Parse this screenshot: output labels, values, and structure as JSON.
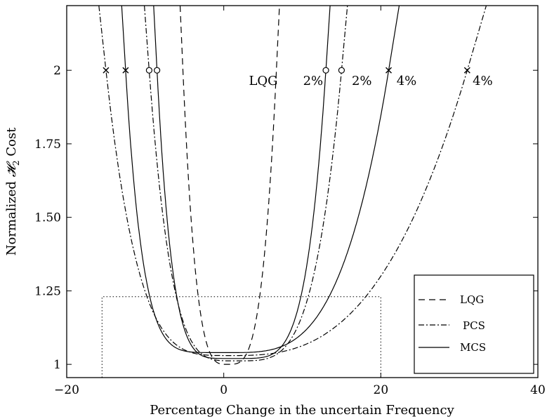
{
  "chart_data": {
    "type": "line",
    "xlabel": "Percentage Change in the uncertain Frequency",
    "ylabel_main": "Normalized ",
    "ylabel_sym": "𝓗",
    "ylabel_sub": "2",
    "ylabel_tail": " Cost",
    "xlim": [
      -20,
      40
    ],
    "ylim": [
      0.955,
      2.22
    ],
    "xticks": [
      {
        "value": -20,
        "label": "−20"
      },
      {
        "value": 0,
        "label": "0"
      },
      {
        "value": 20,
        "label": "20"
      },
      {
        "value": 40,
        "label": "40"
      }
    ],
    "yticks": [
      {
        "value": 1,
        "label": "1"
      },
      {
        "value": 1.25,
        "label": "1.25"
      },
      {
        "value": 1.5,
        "label": "1.50"
      },
      {
        "value": 1.75,
        "label": "1.75"
      },
      {
        "value": 2,
        "label": "2"
      }
    ],
    "grid": false,
    "legend_position": "bottom-right",
    "legend": [
      {
        "label": "LQG",
        "style": "dashed"
      },
      {
        "label": "PCS",
        "style": "dashdot"
      },
      {
        "label": "MCS",
        "style": "solid"
      }
    ],
    "series": [
      {
        "name": "LQG",
        "style": "dashed",
        "center": 0.5,
        "min": 1.0,
        "left": -5.2,
        "right": 6.7,
        "powL": 3.5,
        "powR": 3.5
      },
      {
        "name": "PCS",
        "style": "dashdot",
        "center": 1.5,
        "min": 1.012,
        "left": -9.5,
        "right": 15.0,
        "powL": 4,
        "powR": 4
      },
      {
        "name": "MCS",
        "style": "solid",
        "center": 1.0,
        "min": 1.02,
        "left": -8.5,
        "right": 13.0,
        "powL": 5,
        "powR": 5
      },
      {
        "name": "PCS",
        "style": "dashdot",
        "center": 1.0,
        "min": 1.03,
        "left": -15.0,
        "right": 31.0,
        "powL": 4,
        "powR": 2.8
      },
      {
        "name": "MCS",
        "style": "solid",
        "center": 0.5,
        "min": 1.04,
        "left": -12.5,
        "right": 21.0,
        "powL": 6,
        "powR": 3.5
      }
    ],
    "box": {
      "x0": -15.5,
      "x1": 20.0,
      "y": 1.23
    },
    "markers": [
      {
        "x": -15.0,
        "y": 2,
        "symbol": "x"
      },
      {
        "x": -12.5,
        "y": 2,
        "symbol": "x"
      },
      {
        "x": -9.5,
        "y": 2,
        "symbol": "o"
      },
      {
        "x": -8.5,
        "y": 2,
        "symbol": "o"
      },
      {
        "x": 13.0,
        "y": 2,
        "symbol": "o"
      },
      {
        "x": 15.0,
        "y": 2,
        "symbol": "o"
      },
      {
        "x": 21.0,
        "y": 2,
        "symbol": "x"
      },
      {
        "x": 31.0,
        "y": 2,
        "symbol": "x"
      }
    ],
    "annotations": [
      {
        "text": "LQG",
        "x": 3.2,
        "y": 1.95
      },
      {
        "text": "2%",
        "x": 10.1,
        "y": 1.95
      },
      {
        "text": "2%",
        "x": 16.3,
        "y": 1.95
      },
      {
        "text": "4%",
        "x": 22.0,
        "y": 1.95
      },
      {
        "text": "4%",
        "x": 31.7,
        "y": 1.95
      }
    ]
  }
}
